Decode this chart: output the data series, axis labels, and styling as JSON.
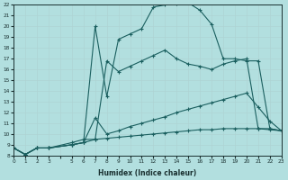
{
  "xlabel": "Humidex (Indice chaleur)",
  "bg_color": "#b2dfdf",
  "grid_color": "#c8eaea",
  "line_color": "#1a5f5f",
  "xlim": [
    0,
    23
  ],
  "ylim": [
    8,
    22
  ],
  "xtick_labels": [
    "0",
    "1",
    "2",
    "3",
    "",
    "5",
    "6",
    "7",
    "8",
    "9",
    "10",
    "11",
    "12",
    "13",
    "14",
    "15",
    "16",
    "17",
    "18",
    "19",
    "20",
    "21",
    "22",
    "23"
  ],
  "ytick_labels": [
    "8",
    "9",
    "10",
    "11",
    "12",
    "13",
    "14",
    "15",
    "16",
    "17",
    "18",
    "19",
    "20",
    "21",
    "22"
  ],
  "series": [
    {
      "x": [
        0,
        1,
        2,
        3,
        5,
        6,
        7,
        8,
        9,
        10,
        11,
        12,
        13,
        14,
        15,
        16,
        17,
        18,
        19,
        20,
        21,
        22,
        23
      ],
      "y": [
        8.7,
        8.1,
        8.7,
        8.7,
        9.0,
        9.2,
        20.0,
        13.5,
        18.8,
        19.3,
        19.8,
        21.8,
        22.0,
        22.1,
        22.2,
        21.5,
        20.2,
        17.0,
        17.0,
        16.8,
        16.8,
        10.5,
        10.3
      ]
    },
    {
      "x": [
        0,
        1,
        2,
        3,
        5,
        6,
        7,
        8,
        9,
        10,
        11,
        12,
        13,
        14,
        15,
        16,
        17,
        18,
        19,
        20,
        21,
        22,
        23
      ],
      "y": [
        8.7,
        8.1,
        8.7,
        8.7,
        9.2,
        9.5,
        9.5,
        16.8,
        15.8,
        16.3,
        16.8,
        17.3,
        17.8,
        17.0,
        16.5,
        16.3,
        16.0,
        16.5,
        16.8,
        17.0,
        10.5,
        10.5,
        10.3
      ]
    },
    {
      "x": [
        0,
        1,
        2,
        3,
        5,
        6,
        7,
        8,
        9,
        10,
        11,
        12,
        13,
        14,
        15,
        16,
        17,
        18,
        19,
        20,
        21,
        22,
        23
      ],
      "y": [
        8.7,
        8.1,
        8.7,
        8.7,
        9.0,
        9.2,
        11.5,
        10.0,
        10.3,
        10.7,
        11.0,
        11.3,
        11.6,
        12.0,
        12.3,
        12.6,
        12.9,
        13.2,
        13.5,
        13.8,
        12.5,
        11.2,
        10.3
      ]
    },
    {
      "x": [
        0,
        1,
        2,
        3,
        5,
        6,
        7,
        8,
        9,
        10,
        11,
        12,
        13,
        14,
        15,
        16,
        17,
        18,
        19,
        20,
        21,
        22,
        23
      ],
      "y": [
        8.7,
        8.1,
        8.7,
        8.7,
        9.0,
        9.2,
        9.5,
        9.6,
        9.7,
        9.8,
        9.9,
        10.0,
        10.1,
        10.2,
        10.3,
        10.4,
        10.4,
        10.5,
        10.5,
        10.5,
        10.5,
        10.4,
        10.3
      ]
    }
  ]
}
